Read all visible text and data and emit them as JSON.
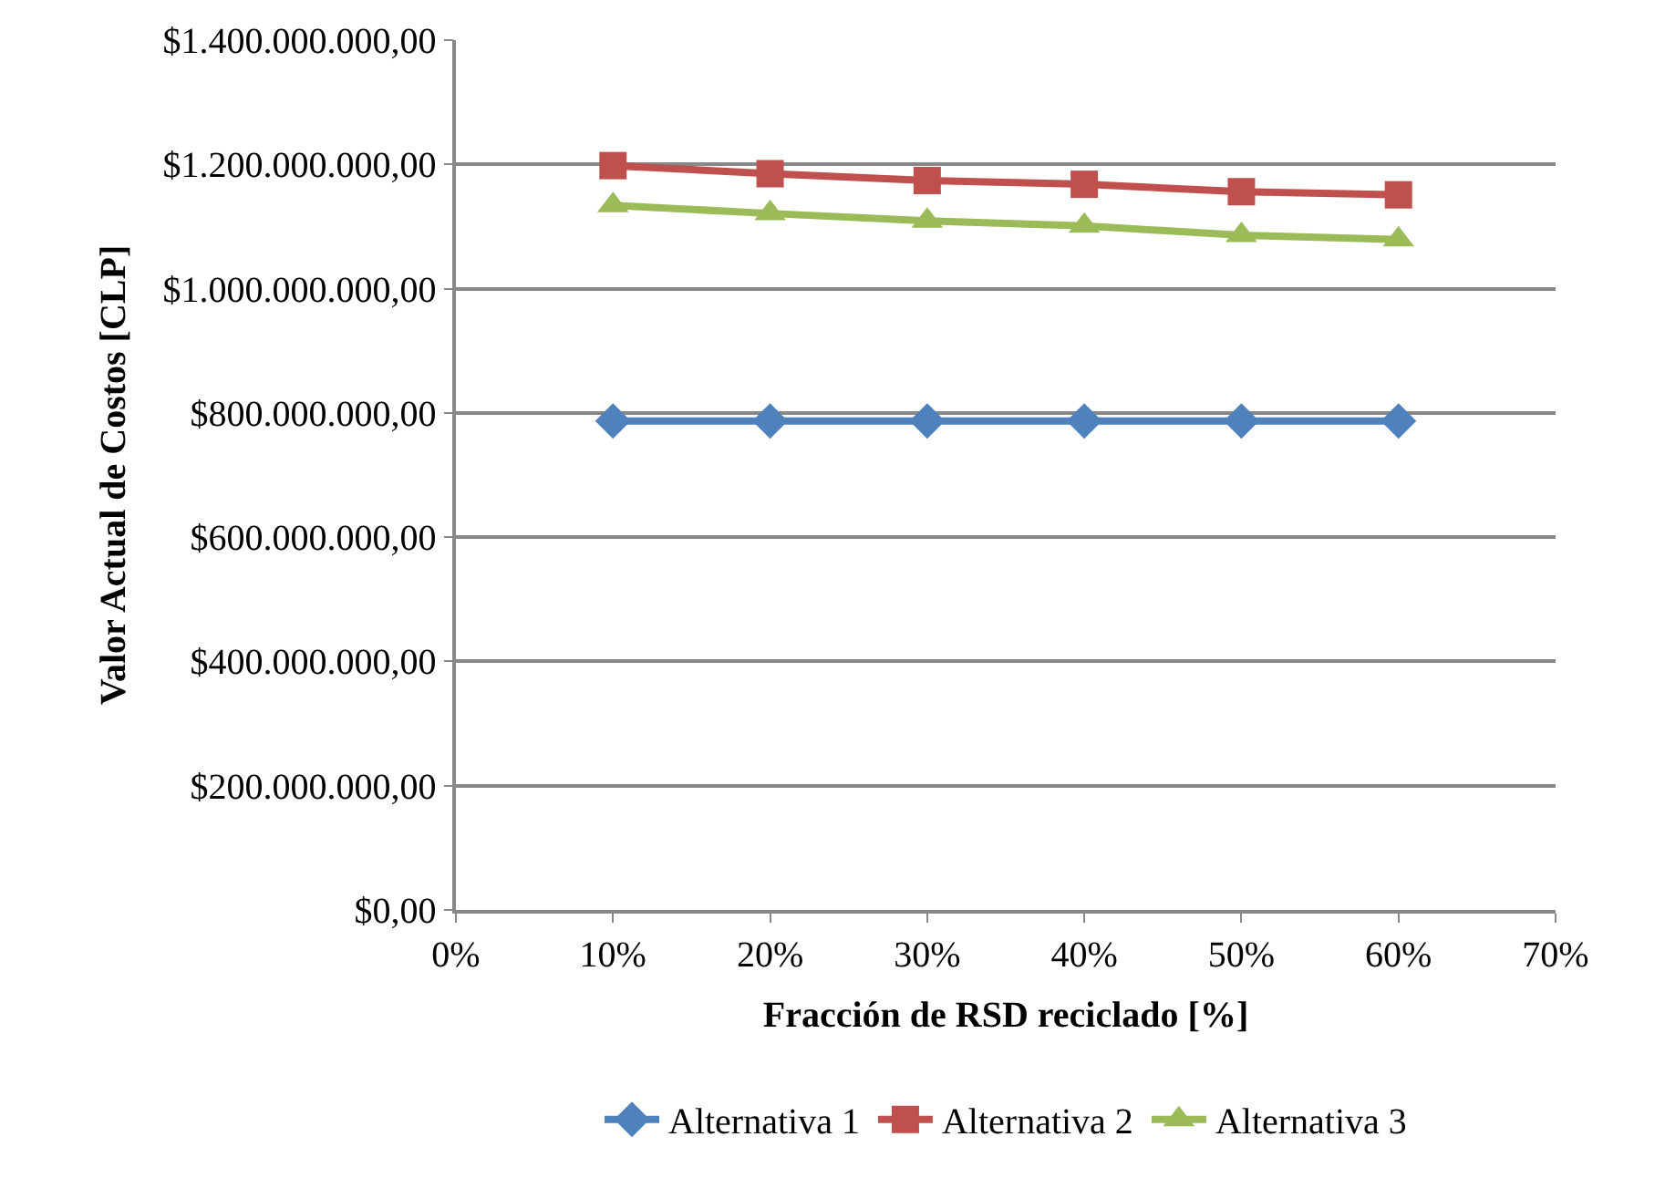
{
  "chart_data": {
    "type": "line",
    "xlabel": "Fracción de RSD reciclado [%]",
    "ylabel": "Valor Actual de Costos [CLP]",
    "x": [
      10,
      20,
      30,
      40,
      50,
      60
    ],
    "xlim": [
      0,
      70
    ],
    "xticks": [
      {
        "value": 0,
        "label": "0%"
      },
      {
        "value": 10,
        "label": "10%"
      },
      {
        "value": 20,
        "label": "20%"
      },
      {
        "value": 30,
        "label": "30%"
      },
      {
        "value": 40,
        "label": "40%"
      },
      {
        "value": 50,
        "label": "50%"
      },
      {
        "value": 60,
        "label": "60%"
      },
      {
        "value": 70,
        "label": "70%"
      }
    ],
    "ylim": [
      0,
      1400000000
    ],
    "yticks": [
      {
        "value": 0,
        "label": "$0,00"
      },
      {
        "value": 200000000,
        "label": "$200.000.000,00"
      },
      {
        "value": 400000000,
        "label": "$400.000.000,00"
      },
      {
        "value": 600000000,
        "label": "$600.000.000,00"
      },
      {
        "value": 800000000,
        "label": "$800.000.000,00"
      },
      {
        "value": 1000000000,
        "label": "$1.000.000.000,00"
      },
      {
        "value": 1200000000,
        "label": "$1.200.000.000,00"
      },
      {
        "value": 1400000000,
        "label": "$1.400.000.000,00"
      }
    ],
    "grid": "y",
    "legend": "bottom",
    "series": [
      {
        "name": "Alternativa 1",
        "color": "#4f81bd",
        "marker": "diamond",
        "values": [
          787000000,
          787000000,
          787000000,
          787000000,
          787000000,
          787000000
        ]
      },
      {
        "name": "Alternativa 2",
        "color": "#c0504d",
        "marker": "square",
        "values": [
          1198000000,
          1185000000,
          1174000000,
          1168000000,
          1156000000,
          1151000000
        ]
      },
      {
        "name": "Alternativa 3",
        "color": "#9bbb59",
        "marker": "triangle",
        "values": [
          1134000000,
          1121000000,
          1109000000,
          1101000000,
          1086000000,
          1079000000
        ]
      }
    ]
  }
}
